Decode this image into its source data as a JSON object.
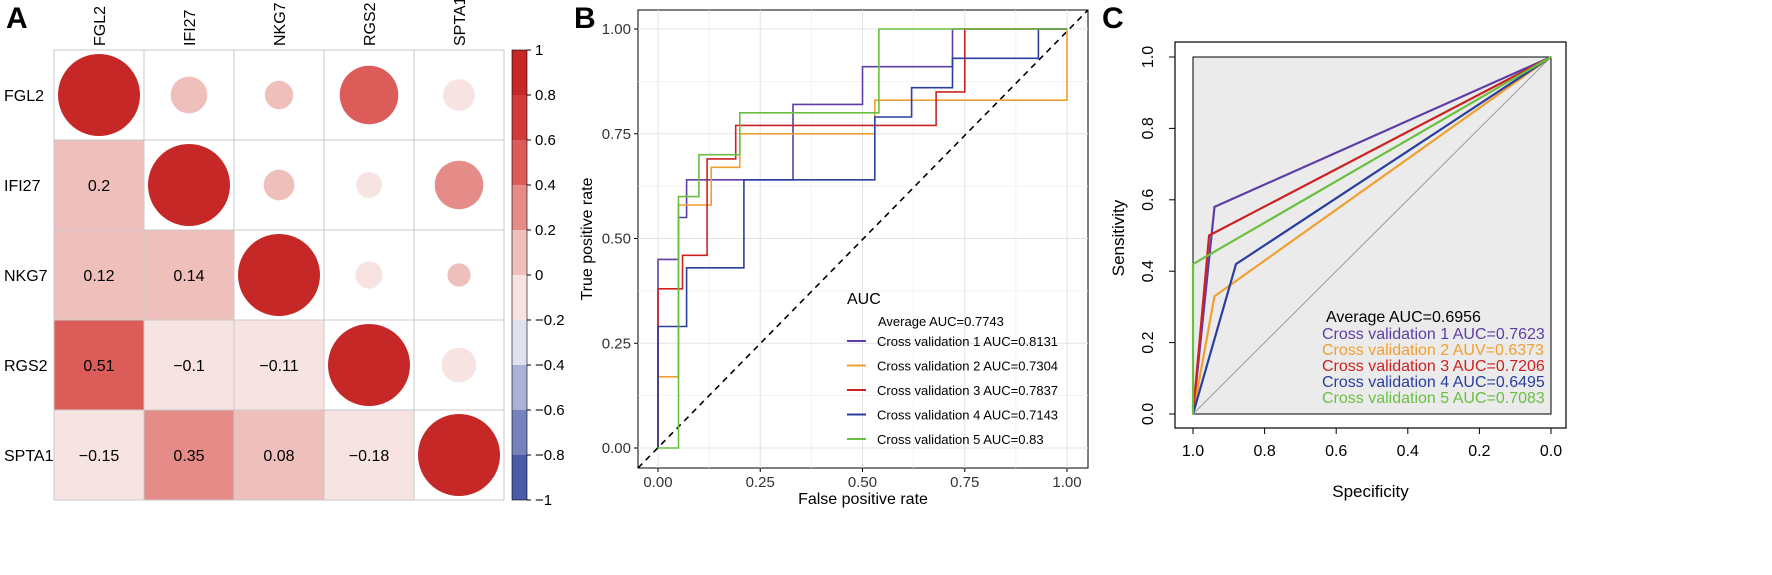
{
  "panels": {
    "a": "A",
    "b": "B",
    "c": "C"
  },
  "chart_data": [
    {
      "type": "heatmap",
      "variables": [
        "FGL2",
        "IFI27",
        "NKG7",
        "RGS2",
        "SPTA1"
      ],
      "matrix": [
        [
          1,
          0.2,
          0.12,
          0.51,
          -0.15
        ],
        [
          0.2,
          1,
          0.14,
          -0.1,
          0.35
        ],
        [
          0.12,
          0.14,
          1,
          -0.11,
          0.08
        ],
        [
          0.51,
          -0.1,
          -0.11,
          1,
          -0.18
        ],
        [
          -0.15,
          0.35,
          0.08,
          -0.18,
          1
        ]
      ],
      "lower_labels": [
        [
          "0.2"
        ],
        [
          "0.12",
          "0.14"
        ],
        [
          "0.51",
          "−0.1",
          "−0.11"
        ],
        [
          "−0.15",
          "0.35",
          "0.08",
          "−0.18"
        ]
      ],
      "colorbar": {
        "range": [
          -1,
          1
        ],
        "ticks": [
          "1",
          "0.8",
          "0.6",
          "0.4",
          "0.2",
          "0",
          "−0.2",
          "−0.4",
          "−0.6",
          "−0.8",
          "−1"
        ],
        "colors": [
          "#c62828",
          "#d13a38",
          "#db5c58",
          "#e58c88",
          "#efbfbc",
          "#f7e4e2",
          "#dfe1ef",
          "#aab1d6",
          "#7682bd",
          "#4a5aa8",
          "#283b94"
        ]
      }
    },
    {
      "type": "line",
      "xlabel": "False positive rate",
      "ylabel": "True positive rate",
      "xlim": [
        0,
        1
      ],
      "ylim": [
        0,
        1
      ],
      "xticks": [
        "0.00",
        "0.25",
        "0.50",
        "0.75",
        "1.00"
      ],
      "yticks": [
        "0.00",
        "0.25",
        "0.50",
        "0.75",
        "1.00"
      ],
      "grid": true,
      "legend": {
        "title": "AUC",
        "subtitle": "Average AUC=0.7743",
        "placement": "bottom-right",
        "labels": [
          "Cross validation 1 AUC=0.8131",
          "Cross validation 2 AUC=0.7304",
          "Cross validation 3 AUC=0.7837",
          "Cross validation 4 AUC=0.7143",
          "Cross validation 5 AUC=0.83"
        ]
      },
      "series": [
        {
          "color": "#5e3ea6",
          "points": [
            [
              0,
              0
            ],
            [
              0,
              0.45
            ],
            [
              0.05,
              0.45
            ],
            [
              0.05,
              0.55
            ],
            [
              0.07,
              0.55
            ],
            [
              0.07,
              0.64
            ],
            [
              0.33,
              0.64
            ],
            [
              0.33,
              0.82
            ],
            [
              0.5,
              0.82
            ],
            [
              0.5,
              0.91
            ],
            [
              0.72,
              0.91
            ],
            [
              0.72,
              1
            ],
            [
              1,
              1
            ]
          ]
        },
        {
          "color": "#f0a030",
          "points": [
            [
              0,
              0
            ],
            [
              0,
              0.17
            ],
            [
              0.05,
              0.17
            ],
            [
              0.05,
              0.58
            ],
            [
              0.13,
              0.58
            ],
            [
              0.13,
              0.67
            ],
            [
              0.2,
              0.67
            ],
            [
              0.2,
              0.75
            ],
            [
              0.53,
              0.75
            ],
            [
              0.53,
              0.83
            ],
            [
              1,
              0.83
            ],
            [
              1,
              1
            ]
          ]
        },
        {
          "color": "#cc2222",
          "points": [
            [
              0,
              0
            ],
            [
              0,
              0.38
            ],
            [
              0.06,
              0.38
            ],
            [
              0.06,
              0.46
            ],
            [
              0.12,
              0.46
            ],
            [
              0.12,
              0.69
            ],
            [
              0.19,
              0.69
            ],
            [
              0.19,
              0.77
            ],
            [
              0.68,
              0.77
            ],
            [
              0.68,
              0.85
            ],
            [
              0.75,
              0.85
            ],
            [
              0.75,
              1
            ],
            [
              1,
              1
            ]
          ]
        },
        {
          "color": "#2a3f9e",
          "points": [
            [
              0,
              0
            ],
            [
              0,
              0.29
            ],
            [
              0.07,
              0.29
            ],
            [
              0.07,
              0.43
            ],
            [
              0.21,
              0.43
            ],
            [
              0.21,
              0.64
            ],
            [
              0.53,
              0.64
            ],
            [
              0.53,
              0.79
            ],
            [
              0.62,
              0.79
            ],
            [
              0.62,
              0.86
            ],
            [
              0.72,
              0.86
            ],
            [
              0.72,
              0.93
            ],
            [
              0.93,
              0.93
            ],
            [
              0.93,
              1
            ],
            [
              1,
              1
            ]
          ]
        },
        {
          "color": "#6abf40",
          "points": [
            [
              0,
              0
            ],
            [
              0.05,
              0
            ],
            [
              0.05,
              0.6
            ],
            [
              0.1,
              0.6
            ],
            [
              0.1,
              0.7
            ],
            [
              0.2,
              0.7
            ],
            [
              0.2,
              0.8
            ],
            [
              0.54,
              0.8
            ],
            [
              0.54,
              1
            ],
            [
              1,
              1
            ]
          ]
        }
      ]
    },
    {
      "type": "line",
      "xlabel": "Specificity",
      "ylabel": "Sensitivity",
      "xlim": [
        1,
        0
      ],
      "ylim": [
        0,
        1
      ],
      "xticks": [
        "1.0",
        "0.8",
        "0.6",
        "0.4",
        "0.2",
        "0.0"
      ],
      "yticks": [
        "0.0",
        "0.2",
        "0.4",
        "0.6",
        "0.8",
        "1.0"
      ],
      "legend": {
        "subtitle": "Average AUC=0.6956",
        "placement": "bottom-right",
        "labels": [
          "Cross validation 1 AUC=0.7623",
          "Cross validation 2 AUV=0.6373",
          "Cross validation 3 AUC=0.7206",
          "Cross validation 4 AUC=0.6495",
          "Cross validation 5 AUC=0.7083"
        ]
      },
      "series": [
        {
          "color": "#5e3ea6",
          "points": [
            [
              1,
              0
            ],
            [
              0.94,
              0.58
            ],
            [
              0,
              1
            ]
          ]
        },
        {
          "color": "#f0a030",
          "points": [
            [
              1,
              0
            ],
            [
              0.94,
              0.33
            ],
            [
              0,
              1
            ]
          ]
        },
        {
          "color": "#cc2222",
          "points": [
            [
              1,
              0
            ],
            [
              0.955,
              0.5
            ],
            [
              0,
              1
            ]
          ]
        },
        {
          "color": "#2a3f9e",
          "points": [
            [
              1,
              0
            ],
            [
              0.88,
              0.42
            ],
            [
              0,
              1
            ]
          ]
        },
        {
          "color": "#6abf40",
          "points": [
            [
              1,
              0
            ],
            [
              1,
              0.42
            ],
            [
              0,
              1
            ]
          ]
        }
      ]
    }
  ]
}
